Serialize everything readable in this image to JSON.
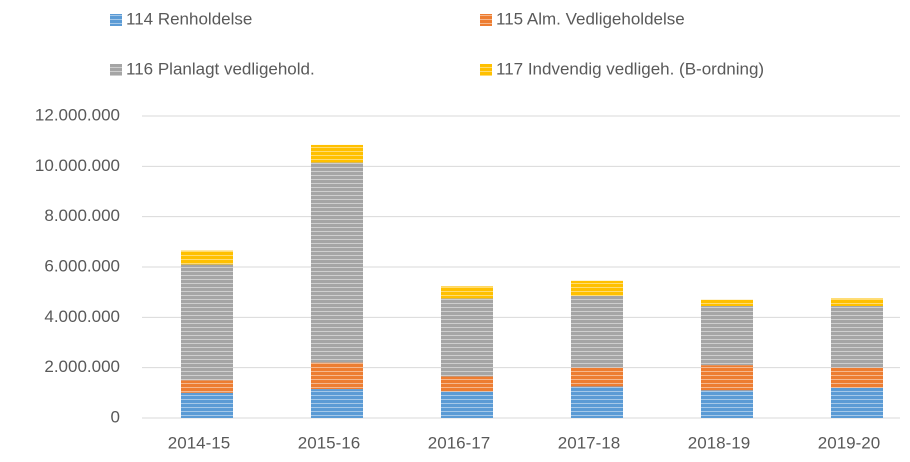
{
  "chart_data": {
    "type": "stacked_bar",
    "categories": [
      "2014-15",
      "2015-16",
      "2016-17",
      "2017-18",
      "2018-19",
      "2019-20"
    ],
    "series": [
      {
        "name": "114 Renholdelse",
        "color": "#5b9bd5",
        "values": [
          1000000,
          1150000,
          1050000,
          1250000,
          1100000,
          1200000
        ]
      },
      {
        "name": "115 Alm. Vedligeholdelse",
        "color": "#ed7d31",
        "values": [
          500000,
          1050000,
          600000,
          750000,
          1000000,
          800000
        ]
      },
      {
        "name": "116 Planlagt vedligehold.",
        "color": "#a5a5a5",
        "values": [
          4600000,
          7950000,
          3100000,
          2850000,
          2350000,
          2450000
        ]
      },
      {
        "name": "117 Indvendig vedligeh. (B-ordning)",
        "color": "#ffc000",
        "values": [
          550000,
          700000,
          480000,
          600000,
          250000,
          300000
        ]
      }
    ],
    "ylim": [
      0,
      12000000
    ],
    "yticks": [
      0,
      {
        "value": 2000000,
        "label": "2.000.000"
      },
      {
        "value": 4000000,
        "label": "4.000.000"
      },
      {
        "value": 6000000,
        "label": "6.000.000"
      },
      {
        "value": 8000000,
        "label": "8.000.000"
      },
      {
        "value": 10000000,
        "label": "10.000.000"
      },
      {
        "value": 12000000,
        "label": "12.000.000"
      }
    ],
    "grid": true,
    "legend": "top"
  }
}
